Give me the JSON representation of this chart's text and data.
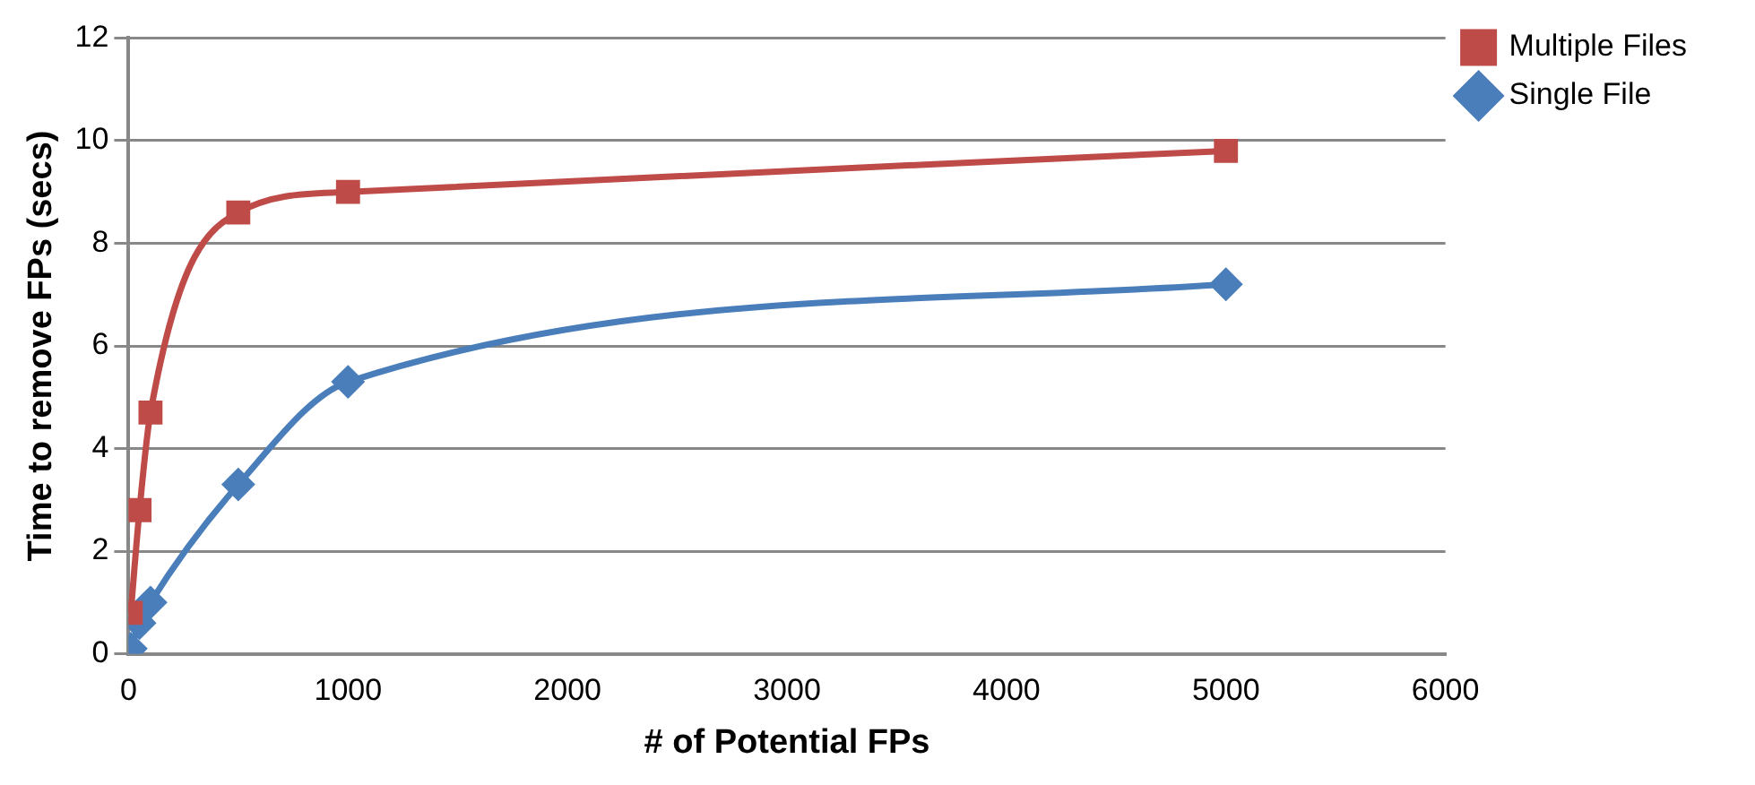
{
  "chart_data": {
    "type": "line",
    "xlabel": "# of Potential FPs",
    "ylabel": "Time to remove FPs (secs)",
    "series": [
      {
        "name": "Single File",
        "color": "#4a7ebb",
        "x": [
          10,
          50,
          100,
          500,
          1000,
          5000
        ],
        "values": [
          0.1,
          0.6,
          1.0,
          3.3,
          5.3,
          7.2
        ],
        "marker": "diamond"
      },
      {
        "name": "Multiple Files",
        "color": "#be4b48",
        "x": [
          10,
          50,
          100,
          500,
          1000,
          5000
        ],
        "values": [
          0.8,
          2.8,
          4.7,
          8.6,
          9.0,
          9.8
        ],
        "marker": "square"
      }
    ],
    "xlim": [
      0,
      6000
    ],
    "xticks": [
      0,
      1000,
      2000,
      3000,
      4000,
      5000,
      6000
    ],
    "ylim": [
      0,
      12
    ],
    "yticks": [
      0,
      2,
      4,
      6,
      8,
      10,
      12
    ],
    "grid": "y",
    "legend": "top right",
    "line_style": "solid"
  }
}
